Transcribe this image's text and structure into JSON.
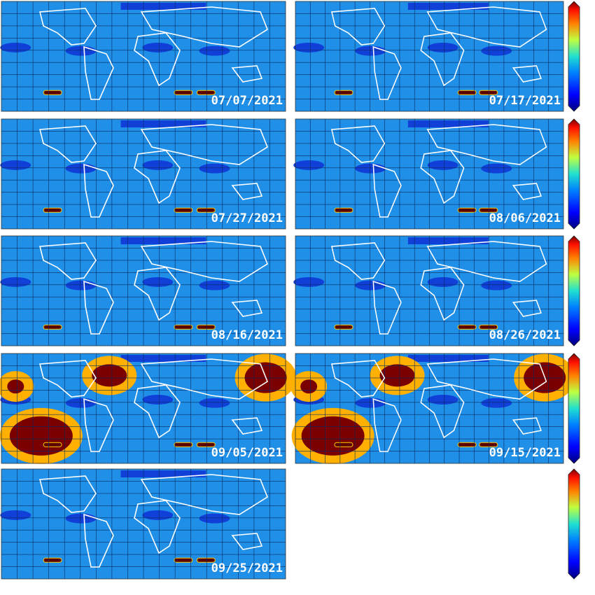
{
  "panels": [
    {
      "date": "07/07/2021"
    },
    {
      "date": "07/17/2021"
    },
    {
      "date": "07/27/2021"
    },
    {
      "date": "08/06/2021"
    },
    {
      "date": "08/16/2021"
    },
    {
      "date": "08/26/2021"
    },
    {
      "date": "09/05/2021"
    },
    {
      "date": "09/15/2021"
    },
    {
      "date": "09/25/2021"
    }
  ]
}
